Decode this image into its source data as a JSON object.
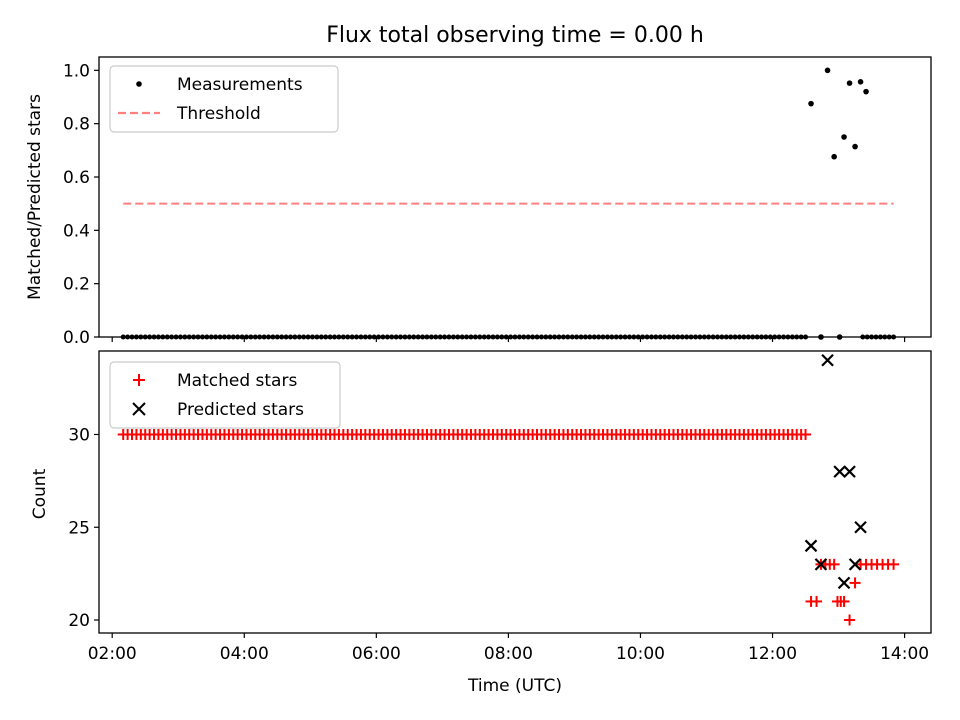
{
  "title": "Flux total observing time = 0.00 h",
  "colors": {
    "measurements": "#000000",
    "threshold": "#ff7f7f",
    "matched": "#ff0000",
    "predicted": "#000000"
  },
  "chart_data": [
    {
      "type": "scatter",
      "ylabel": "Matched/Predicted stars",
      "xlabel": "",
      "xlim": [
        "01:48",
        "14:24"
      ],
      "ylim": [
        0,
        1.05
      ],
      "yticks": [
        "0.0",
        "0.2",
        "0.4",
        "0.6",
        "0.8",
        "1.0"
      ],
      "legend_position": "top-left",
      "grid": false,
      "series": [
        {
          "name": "Measurements",
          "marker": "dot",
          "x": [
            "12:35",
            "12:44",
            "12:50",
            "12:56",
            "13:01",
            "13:05",
            "13:10",
            "13:15",
            "13:20",
            "13:25"
          ],
          "y": [
            0.875,
            0.0,
            1.0,
            0.676,
            0.0,
            0.75,
            0.952,
            0.714,
            0.957,
            0.92
          ],
          "baseline": {
            "y": 0.0,
            "x_start": "02:10",
            "x_end": "12:30",
            "step_minutes": 4,
            "extra_x": [
              "13:22",
              "13:26",
              "13:30",
              "13:34",
              "13:38",
              "13:42",
              "13:46",
              "13:50"
            ]
          }
        },
        {
          "name": "Threshold",
          "style": "dashed",
          "x": [
            "02:10",
            "13:50"
          ],
          "y": [
            0.5,
            0.5
          ]
        }
      ]
    },
    {
      "type": "scatter",
      "ylabel": "Count",
      "xlabel": "Time (UTC)",
      "xlim": [
        "01:48",
        "14:24"
      ],
      "ylim": [
        19.3,
        34.5
      ],
      "yticks": [
        "20",
        "25",
        "30"
      ],
      "xticks": [
        "02:00",
        "04:00",
        "06:00",
        "08:00",
        "10:00",
        "12:00",
        "14:00"
      ],
      "legend_position": "top-left",
      "grid": false,
      "series": [
        {
          "name": "Matched stars",
          "marker": "plus",
          "constant_run": {
            "y": 30,
            "x_start": "02:10",
            "x_end": "12:30",
            "step_minutes": 4
          },
          "x": [
            "12:35",
            "12:40",
            "12:44",
            "12:48",
            "12:52",
            "12:56",
            "12:59",
            "13:02",
            "13:05",
            "13:10",
            "13:15",
            "13:20",
            "13:25",
            "13:30",
            "13:35",
            "13:40",
            "13:45",
            "13:50"
          ],
          "y": [
            21,
            21,
            23,
            23,
            23,
            23,
            21,
            21,
            21,
            20,
            22,
            23,
            23,
            23,
            23,
            23,
            23,
            23
          ]
        },
        {
          "name": "Predicted stars",
          "marker": "x",
          "x": [
            "12:35",
            "12:44",
            "12:50",
            "13:01",
            "13:05",
            "13:10",
            "13:15",
            "13:20"
          ],
          "y": [
            24,
            23,
            34,
            28,
            22,
            28,
            23,
            25
          ]
        }
      ]
    }
  ]
}
